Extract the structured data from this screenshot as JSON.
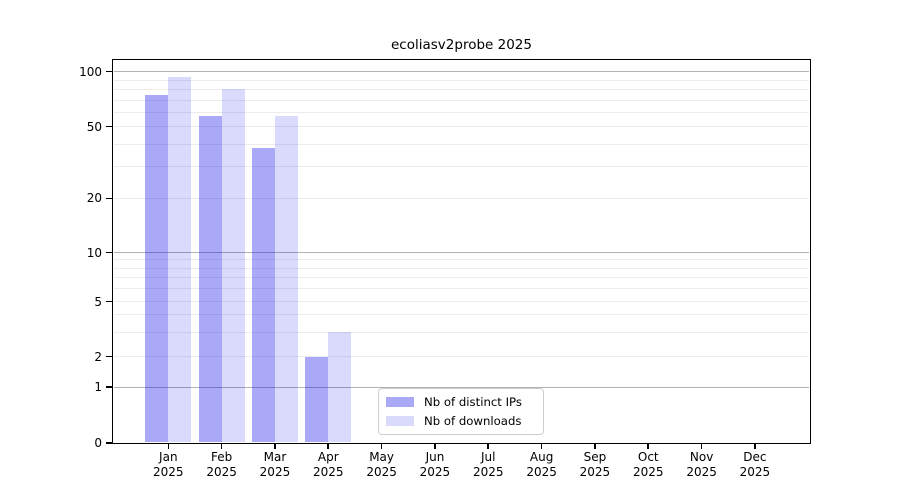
{
  "chart_data": {
    "type": "bar",
    "title": "ecoliasv2probe 2025",
    "x_months": [
      "Jan",
      "Feb",
      "Mar",
      "Apr",
      "May",
      "Jun",
      "Jul",
      "Aug",
      "Sep",
      "Oct",
      "Nov",
      "Dec"
    ],
    "x_year": "2025",
    "categories": [
      "Jan 2025",
      "Feb 2025",
      "Mar 2025",
      "Apr 2025",
      "May 2025",
      "Jun 2025",
      "Jul 2025",
      "Aug 2025",
      "Sep 2025",
      "Oct 2025",
      "Nov 2025",
      "Dec 2025"
    ],
    "series": [
      {
        "name": "Nb of distinct IPs",
        "color": "rgba(10,10,235,0.35)",
        "color_hex_on_white": "#a9a9f8",
        "values": [
          75,
          57,
          38,
          2,
          0,
          0,
          0,
          0,
          0,
          0,
          0,
          0
        ]
      },
      {
        "name": "Nb of downloads",
        "color": "rgba(10,10,235,0.15)",
        "color_hex_on_white": "#dadafc",
        "values": [
          94,
          80,
          57,
          3,
          0,
          0,
          0,
          0,
          0,
          0,
          0,
          0
        ]
      }
    ],
    "y_scale": "symlog",
    "ylim": [
      0,
      110
    ],
    "y_ticks": [
      0,
      1,
      2,
      5,
      10,
      20,
      50,
      100
    ],
    "y_tick_labels": [
      "0",
      "1",
      "2",
      "5",
      "10",
      "20",
      "50",
      "100"
    ],
    "y_major_gridlines": [
      1,
      10,
      100
    ],
    "y_minor_gridlines": [
      2,
      3,
      4,
      5,
      6,
      7,
      8,
      9,
      20,
      30,
      40,
      50,
      60,
      70,
      80,
      90
    ],
    "grid": true,
    "legend_position": "lower center inside plot",
    "grid_major_color": "#b2b2b2",
    "grid_minor_color": "#ececec"
  },
  "legend": {
    "items": [
      "Nb of distinct IPs",
      "Nb of downloads"
    ]
  }
}
